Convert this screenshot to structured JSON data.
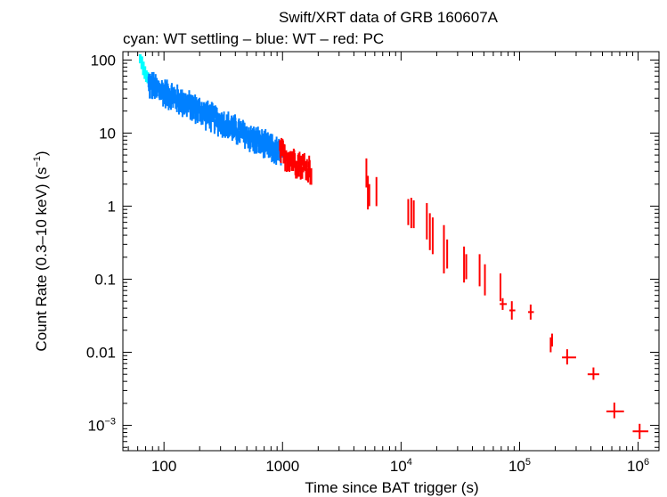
{
  "chart_data": {
    "type": "scatter",
    "title": "Swift/XRT data of GRB 160607A",
    "subtitle": "cyan: WT settling – blue: WT – red: PC",
    "xlabel": "Time since BAT trigger (s)",
    "ylabel_main": "Count Rate (0.3–10 keV) (s",
    "ylabel_sup": "−1",
    "ylabel_tail": ")",
    "xscale": "log",
    "yscale": "log",
    "xlim": [
      45,
      1500000
    ],
    "ylim": [
      0.00045,
      130
    ],
    "x_ticks": [
      {
        "value": 100,
        "label": "100"
      },
      {
        "value": 1000,
        "label": "1000"
      },
      {
        "value": 10000,
        "base": "10",
        "exp": "4"
      },
      {
        "value": 100000,
        "base": "10",
        "exp": "5"
      },
      {
        "value": 1000000,
        "base": "10",
        "exp": "6"
      }
    ],
    "y_ticks": [
      {
        "value": 100,
        "label": "100"
      },
      {
        "value": 10,
        "label": "10"
      },
      {
        "value": 1,
        "label": "1"
      },
      {
        "value": 0.1,
        "label": "0.1"
      },
      {
        "value": 0.01,
        "label": "0.01"
      },
      {
        "value": 0.001,
        "base": "10",
        "exp": "−3"
      }
    ],
    "colors": {
      "wt_settling": "#00ffff",
      "wt": "#0080ff",
      "pc": "#ff0000"
    },
    "series": [
      {
        "name": "WT settling",
        "color": "#00ffff",
        "bands": [
          {
            "t": 63,
            "lo": 90,
            "hi": 120
          },
          {
            "t": 65,
            "lo": 75,
            "hi": 112
          },
          {
            "t": 67,
            "lo": 62,
            "hi": 95
          },
          {
            "t": 69,
            "lo": 55,
            "hi": 82
          },
          {
            "t": 71,
            "lo": 50,
            "hi": 72
          },
          {
            "t": 73,
            "lo": 48,
            "hi": 68
          }
        ]
      },
      {
        "name": "WT",
        "color": "#0080ff",
        "curve": {
          "t_start": 74,
          "t_end": 1000,
          "amp": 1800,
          "index": 0.85,
          "scatter": 0.16,
          "n": 340
        }
      },
      {
        "name": "PC",
        "color": "#ff0000",
        "curve": {
          "t_start": 950,
          "t_end": 1750,
          "amp": 1800,
          "index": 0.85,
          "scatter": 0.17,
          "n": 60
        },
        "points": [
          {
            "t": 5100,
            "lo": 1.8,
            "hi": 4.5
          },
          {
            "t": 5250,
            "lo": 0.9,
            "hi": 2.6
          },
          {
            "t": 5400,
            "lo": 1.0,
            "hi": 2.0
          },
          {
            "t": 6200,
            "lo": 1.0,
            "hi": 2.5
          },
          {
            "t": 11500,
            "lo": 0.55,
            "hi": 1.25
          },
          {
            "t": 12200,
            "lo": 0.5,
            "hi": 1.3
          },
          {
            "t": 12800,
            "lo": 0.5,
            "hi": 1.2
          },
          {
            "t": 16500,
            "lo": 0.35,
            "hi": 1.1
          },
          {
            "t": 17500,
            "lo": 0.25,
            "hi": 0.8
          },
          {
            "t": 18500,
            "lo": 0.22,
            "hi": 0.7
          },
          {
            "t": 23000,
            "lo": 0.12,
            "hi": 0.55
          },
          {
            "t": 24500,
            "lo": 0.14,
            "hi": 0.35
          },
          {
            "t": 34000,
            "lo": 0.09,
            "hi": 0.28
          },
          {
            "t": 35500,
            "lo": 0.1,
            "hi": 0.22
          },
          {
            "t": 46000,
            "lo": 0.08,
            "hi": 0.22
          },
          {
            "t": 51000,
            "lo": 0.06,
            "hi": 0.16
          },
          {
            "t": 69000,
            "lo": 0.05,
            "hi": 0.12
          },
          {
            "t": 72000,
            "lo": 0.038,
            "hi": 0.055,
            "xerr": [
              68000,
              78000
            ]
          },
          {
            "t": 86000,
            "lo": 0.028,
            "hi": 0.05,
            "xerr": [
              82000,
              92000
            ]
          },
          {
            "t": 124000,
            "lo": 0.028,
            "hi": 0.045,
            "xerr": [
              118000,
              132000
            ]
          },
          {
            "t": 183000,
            "lo": 0.01,
            "hi": 0.016
          },
          {
            "t": 188000,
            "lo": 0.012,
            "hi": 0.018
          },
          {
            "t": 252000,
            "lo": 0.0068,
            "hi": 0.011,
            "xerr": [
              228000,
              300000
            ],
            "y": 0.0085
          },
          {
            "t": 420000,
            "lo": 0.0042,
            "hi": 0.0062,
            "xerr": [
              375000,
              470000
            ],
            "y": 0.005
          },
          {
            "t": 630000,
            "lo": 0.00125,
            "hi": 0.00205,
            "xerr": [
              540000,
              760000
            ],
            "y": 0.00155
          },
          {
            "t": 1030000,
            "lo": 0.00065,
            "hi": 0.00105,
            "xerr": [
              900000,
              1220000
            ],
            "y": 0.00083
          }
        ]
      }
    ]
  }
}
